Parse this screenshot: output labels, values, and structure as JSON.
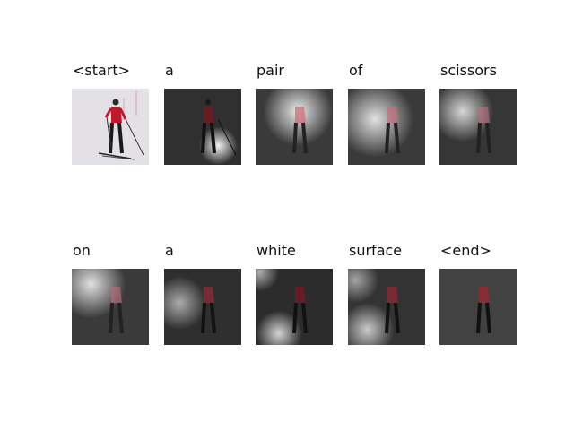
{
  "rows": [
    {
      "tokens": [
        {
          "word": "<start>",
          "kind": "original"
        },
        {
          "word": "a",
          "kind": "attention",
          "hotspot": "lower-center"
        },
        {
          "word": "pair",
          "kind": "attention",
          "hotspot": "upper-left"
        },
        {
          "word": "of",
          "kind": "attention",
          "hotspot": "left"
        },
        {
          "word": "scissors",
          "kind": "attention",
          "hotspot": "upper-left"
        }
      ]
    },
    {
      "tokens": [
        {
          "word": "on",
          "kind": "attention",
          "hotspot": "upper-left"
        },
        {
          "word": "a",
          "kind": "attention",
          "hotspot": "left"
        },
        {
          "word": "white",
          "kind": "attention",
          "hotspot": "bottom-left"
        },
        {
          "word": "surface",
          "kind": "attention",
          "hotspot": "bottom-left"
        },
        {
          "word": "<end>",
          "kind": "attention",
          "hotspot": "none"
        }
      ]
    }
  ]
}
